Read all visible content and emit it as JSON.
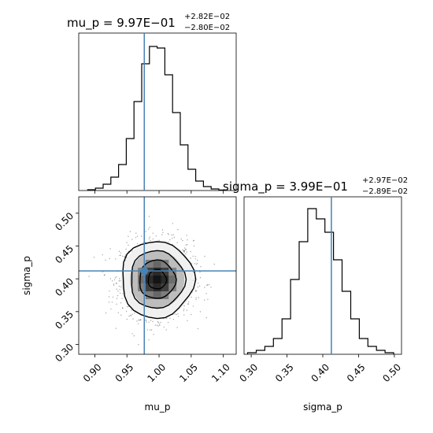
{
  "chart_data": {
    "type": "corner",
    "parameters": [
      "mu_p",
      "sigma_p"
    ],
    "truth": {
      "mu_p": 0.977,
      "sigma_p": 0.412
    },
    "truth_color": "#4682b4",
    "line_color": "#000000",
    "panels": {
      "mu_p_hist": {
        "type": "histogram",
        "title": {
          "lhs": "mu_p = ",
          "value": "9.97E−01",
          "plus": "+2.82E−02",
          "minus": "−2.80E−02"
        },
        "xlim": [
          0.875,
          1.12
        ],
        "ylim": [
          0,
          1.0
        ],
        "bin_edges": [
          0.889,
          0.901,
          0.913,
          0.925,
          0.937,
          0.949,
          0.961,
          0.973,
          0.985,
          0.997,
          1.009,
          1.021,
          1.033,
          1.045,
          1.057,
          1.069,
          1.081,
          1.093,
          1.105
        ],
        "counts": [
          0.005,
          0.015,
          0.04,
          0.085,
          0.165,
          0.33,
          0.565,
          0.805,
          0.915,
          0.905,
          0.735,
          0.495,
          0.29,
          0.135,
          0.06,
          0.025,
          0.01,
          0.003
        ]
      },
      "sigma_p_hist": {
        "type": "histogram",
        "title": {
          "lhs": "sigma_p = ",
          "value": "3.99E−01",
          "plus": "+2.97E−02",
          "minus": "−2.89E−02"
        },
        "xlim": [
          0.29,
          0.51
        ],
        "ylim": [
          0,
          1.0
        ],
        "bin_edges": [
          0.295,
          0.307,
          0.319,
          0.331,
          0.343,
          0.355,
          0.367,
          0.379,
          0.391,
          0.403,
          0.415,
          0.427,
          0.439,
          0.451,
          0.463,
          0.475,
          0.487,
          0.499
        ],
        "counts": [
          0.01,
          0.025,
          0.05,
          0.1,
          0.225,
          0.475,
          0.715,
          0.925,
          0.86,
          0.775,
          0.6,
          0.4,
          0.225,
          0.1,
          0.05,
          0.025,
          0.01
        ]
      },
      "joint": {
        "type": "density-contour",
        "xlim": [
          0.875,
          1.12
        ],
        "ylim": [
          0.285,
          0.525
        ],
        "center": [
          0.997,
          0.399
        ],
        "sigma": [
          0.0282,
          0.0293
        ],
        "contour_levels_sigma": [
          0.5,
          1.0,
          1.5,
          2.0
        ]
      }
    },
    "axes": {
      "x_bottom_left": {
        "label": "mu_p",
        "ticks": [
          0.9,
          0.95,
          1.0,
          1.05,
          1.1
        ],
        "tick_labels": [
          "0.90",
          "0.95",
          "1.00",
          "1.05",
          "1.10"
        ]
      },
      "x_bottom_right": {
        "label": "sigma_p",
        "ticks": [
          0.3,
          0.35,
          0.4,
          0.45,
          0.5
        ],
        "tick_labels": [
          "0.30",
          "0.35",
          "0.40",
          "0.45",
          "0.50"
        ]
      },
      "y_left": {
        "label": "sigma_p",
        "ticks": [
          0.3,
          0.35,
          0.4,
          0.45,
          0.5
        ],
        "tick_labels": [
          "0.30",
          "0.35",
          "0.40",
          "0.45",
          "0.50"
        ]
      }
    }
  }
}
